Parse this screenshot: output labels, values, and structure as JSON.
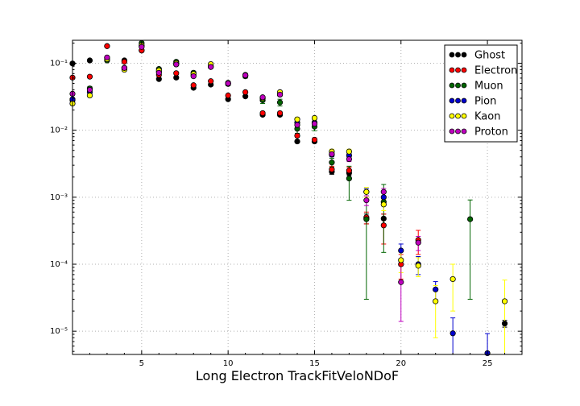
{
  "chart_data": {
    "type": "scatter",
    "title": "",
    "xlabel": "Long Electron TrackFitVeloNDoF",
    "ylabel": "",
    "xlim": [
      1,
      27
    ],
    "ylim": [
      4.5e-06,
      0.22
    ],
    "yscale": "log",
    "grid": true,
    "legend_position": "top-right",
    "x_ticks": [
      5,
      10,
      15,
      20,
      25
    ],
    "x_tick_labels": [
      "5",
      "10",
      "15",
      "20",
      "25"
    ],
    "y_ticks": [
      1e-05,
      0.0001,
      0.001,
      0.01,
      0.1
    ],
    "y_tick_labels": [
      "10⁻⁵",
      "10⁻⁴",
      "10⁻³",
      "10⁻²",
      "10⁻¹"
    ],
    "series": [
      {
        "name": "Ghost",
        "color": "#000000",
        "points": [
          [
            1,
            0.099
          ],
          [
            2,
            0.11
          ],
          [
            3,
            0.18
          ],
          [
            4,
            0.11
          ],
          [
            5,
            0.155
          ],
          [
            6,
            0.058
          ],
          [
            7,
            0.061
          ],
          [
            8,
            0.043
          ],
          [
            9,
            0.048
          ],
          [
            10,
            0.029
          ],
          [
            11,
            0.032
          ],
          [
            12,
            0.017
          ],
          [
            13,
            0.017
          ],
          [
            14,
            0.0068
          ],
          [
            15,
            0.0068
          ],
          [
            16,
            0.0024
          ],
          [
            17,
            0.0023
          ],
          [
            18,
            0.00048
          ],
          [
            19,
            0.00048
          ],
          [
            26,
            1.3e-05
          ]
        ],
        "errors": [
          0.001,
          0.001,
          0.002,
          0.001,
          0.002,
          0.001,
          0.001,
          0.001,
          0.001,
          0.0007,
          0.0007,
          0.0005,
          0.0005,
          0.0003,
          0.0003,
          0.0002,
          0.0002,
          8e-05,
          8e-05,
          1.5e-06
        ]
      },
      {
        "name": "Electron",
        "color": "#ff0000",
        "points": [
          [
            1,
            0.061
          ],
          [
            2,
            0.063
          ],
          [
            3,
            0.18
          ],
          [
            4,
            0.105
          ],
          [
            5,
            0.155
          ],
          [
            6,
            0.067
          ],
          [
            7,
            0.071
          ],
          [
            8,
            0.047
          ],
          [
            9,
            0.054
          ],
          [
            10,
            0.033
          ],
          [
            11,
            0.037
          ],
          [
            12,
            0.018
          ],
          [
            13,
            0.018
          ],
          [
            14,
            0.0083
          ],
          [
            15,
            0.0072
          ],
          [
            16,
            0.0026
          ],
          [
            17,
            0.0025
          ],
          [
            18,
            0.0005
          ],
          [
            19,
            0.00038
          ],
          [
            20,
            0.0001
          ],
          [
            21,
            0.00023
          ]
        ],
        "errors": [
          0.001,
          0.001,
          0.002,
          0.002,
          0.002,
          0.002,
          0.002,
          0.001,
          0.001,
          0.001,
          0.001,
          0.0008,
          0.0008,
          0.0005,
          0.0005,
          0.0003,
          0.0003,
          0.0001,
          0.00018,
          4e-05,
          9e-05
        ]
      },
      {
        "name": "Muon",
        "color": "#006400",
        "points": [
          [
            1,
            0.028
          ],
          [
            2,
            0.042
          ],
          [
            3,
            0.11
          ],
          [
            4,
            0.085
          ],
          [
            5,
            0.2
          ],
          [
            6,
            0.082
          ],
          [
            7,
            0.105
          ],
          [
            8,
            0.072
          ],
          [
            9,
            0.09
          ],
          [
            10,
            0.049
          ],
          [
            11,
            0.064
          ],
          [
            12,
            0.028
          ],
          [
            13,
            0.026
          ],
          [
            14,
            0.0105
          ],
          [
            15,
            0.0113
          ],
          [
            16,
            0.0033
          ],
          [
            17,
            0.0019
          ],
          [
            18,
            0.00047
          ],
          [
            19,
            0.00085
          ],
          [
            24,
            0.00047
          ]
        ],
        "errors": [
          0.002,
          0.003,
          0.004,
          0.004,
          0.008,
          0.004,
          0.005,
          0.004,
          0.004,
          0.003,
          0.004,
          0.003,
          0.003,
          0.0015,
          0.0015,
          0.0005,
          0.001,
          0.00044,
          0.0007,
          0.00044
        ]
      },
      {
        "name": "Pion",
        "color": "#0000cd",
        "points": [
          [
            1,
            0.029
          ],
          [
            2,
            0.037
          ],
          [
            3,
            0.12
          ],
          [
            4,
            0.085
          ],
          [
            5,
            0.18
          ],
          [
            6,
            0.075
          ],
          [
            7,
            0.096
          ],
          [
            8,
            0.066
          ],
          [
            9,
            0.088
          ],
          [
            10,
            0.05
          ],
          [
            11,
            0.067
          ],
          [
            12,
            0.03
          ],
          [
            13,
            0.034
          ],
          [
            14,
            0.013
          ],
          [
            15,
            0.013
          ],
          [
            16,
            0.0043
          ],
          [
            17,
            0.0042
          ],
          [
            18,
            0.0012
          ],
          [
            19,
            0.001
          ],
          [
            20,
            0.00016
          ],
          [
            21,
            0.0001
          ],
          [
            22,
            4.2e-05
          ],
          [
            23,
            9.3e-06
          ],
          [
            25,
            4.7e-06
          ]
        ],
        "errors": [
          0.0008,
          0.001,
          0.002,
          0.002,
          0.003,
          0.002,
          0.002,
          0.002,
          0.002,
          0.001,
          0.002,
          0.001,
          0.001,
          0.0007,
          0.0007,
          0.0003,
          0.0003,
          0.00015,
          0.00015,
          4e-05,
          3e-05,
          1.3e-05,
          6.5e-06,
          4.5e-06
        ]
      },
      {
        "name": "Kaon",
        "color": "#ffff00",
        "points": [
          [
            1,
            0.025
          ],
          [
            2,
            0.033
          ],
          [
            3,
            0.115
          ],
          [
            4,
            0.08
          ],
          [
            5,
            0.185
          ],
          [
            6,
            0.078
          ],
          [
            7,
            0.1
          ],
          [
            8,
            0.069
          ],
          [
            9,
            0.097
          ],
          [
            10,
            0.051
          ],
          [
            11,
            0.066
          ],
          [
            12,
            0.03
          ],
          [
            13,
            0.037
          ],
          [
            14,
            0.0145
          ],
          [
            15,
            0.0152
          ],
          [
            16,
            0.0048
          ],
          [
            17,
            0.0048
          ],
          [
            18,
            0.0012
          ],
          [
            19,
            0.00078
          ],
          [
            20,
            0.000115
          ],
          [
            21,
            9.5e-05
          ],
          [
            22,
            2.8e-05
          ],
          [
            23,
            6e-05
          ],
          [
            26,
            2.8e-05
          ]
        ],
        "errors": [
          0.001,
          0.001,
          0.003,
          0.002,
          0.004,
          0.002,
          0.003,
          0.002,
          0.003,
          0.002,
          0.002,
          0.002,
          0.002,
          0.001,
          0.001,
          0.0004,
          0.0004,
          0.0002,
          0.00015,
          4e-05,
          3e-05,
          2e-05,
          4e-05,
          3e-05
        ]
      },
      {
        "name": "Proton",
        "color": "#bf00bf",
        "points": [
          [
            1,
            0.035
          ],
          [
            2,
            0.04
          ],
          [
            3,
            0.122
          ],
          [
            4,
            0.085
          ],
          [
            5,
            0.175
          ],
          [
            6,
            0.072
          ],
          [
            7,
            0.096
          ],
          [
            8,
            0.064
          ],
          [
            9,
            0.088
          ],
          [
            10,
            0.05
          ],
          [
            11,
            0.066
          ],
          [
            12,
            0.031
          ],
          [
            13,
            0.034
          ],
          [
            14,
            0.012
          ],
          [
            15,
            0.0125
          ],
          [
            16,
            0.0044
          ],
          [
            17,
            0.0037
          ],
          [
            18,
            0.0009
          ],
          [
            19,
            0.0012
          ],
          [
            20,
            5.4e-05
          ],
          [
            21,
            0.00021
          ]
        ],
        "errors": [
          0.001,
          0.001,
          0.002,
          0.002,
          0.003,
          0.002,
          0.002,
          0.002,
          0.002,
          0.001,
          0.002,
          0.001,
          0.001,
          0.0007,
          0.0007,
          0.0003,
          0.0003,
          0.00015,
          0.00015,
          4e-05,
          5e-05
        ]
      }
    ]
  }
}
